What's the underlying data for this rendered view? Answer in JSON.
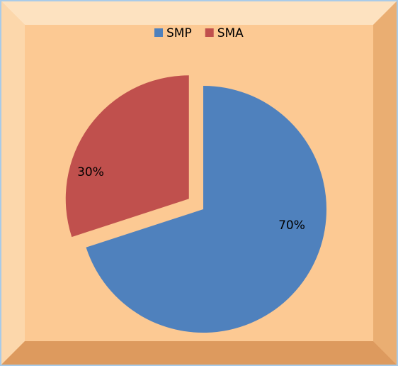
{
  "chart_data": {
    "type": "pie",
    "categories": [
      "SMP",
      "SMA"
    ],
    "values": [
      70,
      30
    ],
    "value_labels": [
      "70%",
      "30%"
    ],
    "colors": [
      "#4f81bd",
      "#c0504d"
    ],
    "legend": "top"
  }
}
